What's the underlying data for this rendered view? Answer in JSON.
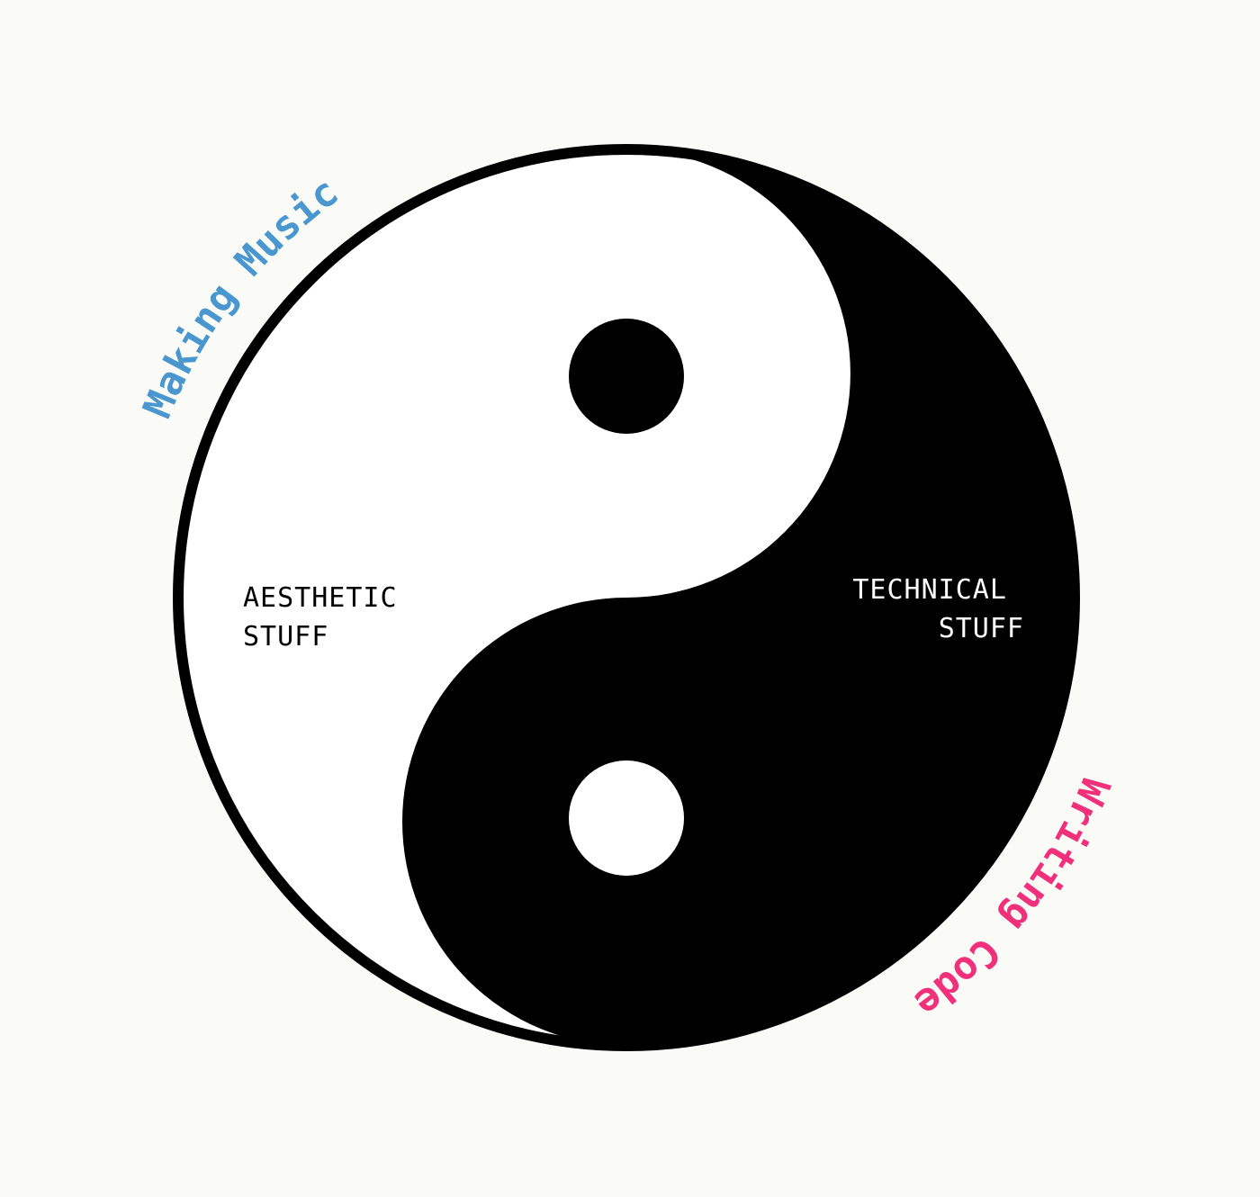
{
  "diagram": {
    "arc_labels": {
      "top_left": "Making Music",
      "bottom_right": "Writing Code"
    },
    "region_labels": {
      "light_side": [
        "AESTHETIC",
        "STUFF"
      ],
      "dark_side": [
        "TECHNICAL",
        "STUFF"
      ]
    }
  },
  "colors": {
    "background": "#fafbf6",
    "yin": "#000000",
    "yang": "#ffffff",
    "making_music": "#4a96cf",
    "writing_code": "#f0307a"
  }
}
